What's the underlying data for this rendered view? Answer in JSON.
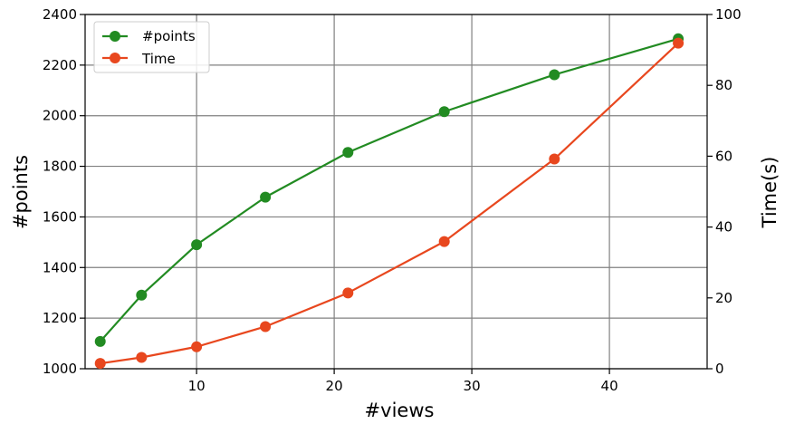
{
  "chart_data": {
    "type": "line",
    "title": "",
    "xlabel": "#views",
    "ylabel": "#points",
    "y2label": "Time(s)",
    "xlim": [
      1.9,
      47.1
    ],
    "ylim": [
      1000,
      2400
    ],
    "y2lim": [
      0,
      100
    ],
    "xticks": [
      10,
      20,
      30,
      40
    ],
    "yticks": [
      1000,
      1200,
      1400,
      1600,
      1800,
      2000,
      2200,
      2400
    ],
    "y2ticks": [
      0,
      20,
      40,
      60,
      80,
      100
    ],
    "grid": true,
    "legend": "upper-left",
    "x": [
      3,
      6,
      10,
      15,
      21,
      28,
      36,
      45
    ],
    "series": [
      {
        "name": "#points",
        "axis": "left",
        "color": "#228B22",
        "values": [
          1108,
          1291,
          1490,
          1678,
          1855,
          2016,
          2162,
          2304
        ]
      },
      {
        "name": "Time",
        "axis": "right",
        "color": "#E8471E",
        "values": [
          1.5,
          3.2,
          6.2,
          11.9,
          21.4,
          35.9,
          59.2,
          91.9
        ]
      }
    ]
  }
}
